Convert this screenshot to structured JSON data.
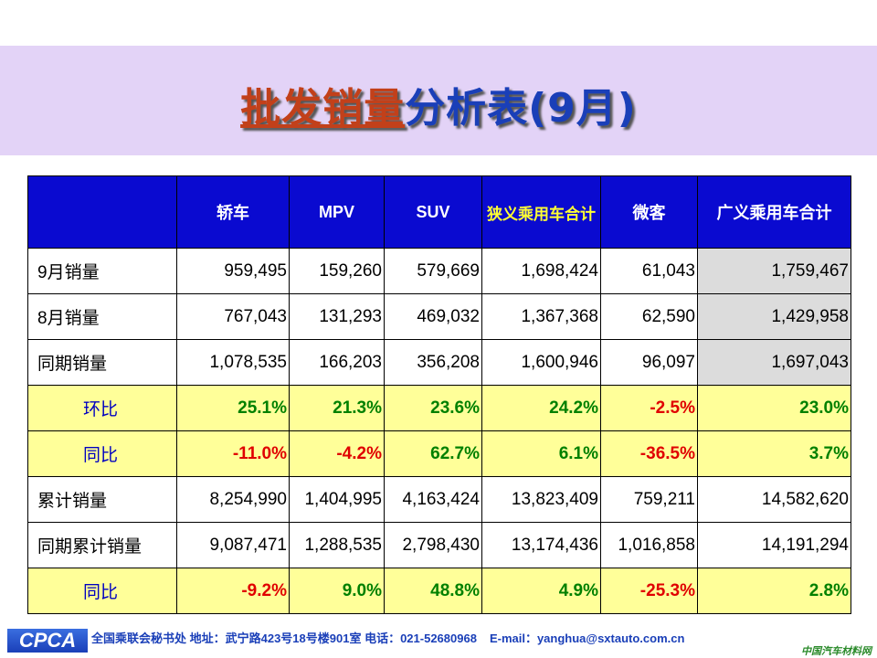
{
  "title": {
    "part1": "批发销量",
    "part2": "分析表(9月)"
  },
  "table": {
    "headers": [
      "",
      "轿车",
      "MPV",
      "SUV",
      "狭义乘用车合计",
      "微客",
      "广义乘用车合计"
    ],
    "rows": [
      {
        "label": "9月销量",
        "type": "num",
        "values": [
          "959,495",
          "159,260",
          "579,669",
          "1,698,424",
          "61,043",
          "1,759,467"
        ]
      },
      {
        "label": "8月销量",
        "type": "num",
        "values": [
          "767,043",
          "131,293",
          "469,032",
          "1,367,368",
          "62,590",
          "1,429,958"
        ]
      },
      {
        "label": "同期销量",
        "type": "num",
        "values": [
          "1,078,535",
          "166,203",
          "356,208",
          "1,600,946",
          "96,097",
          "1,697,043"
        ]
      },
      {
        "label": "环比",
        "type": "pct",
        "values": [
          "25.1%",
          "21.3%",
          "23.6%",
          "24.2%",
          "-2.5%",
          "23.0%"
        ]
      },
      {
        "label": "同比",
        "type": "pct",
        "values": [
          "-11.0%",
          "-4.2%",
          "62.7%",
          "6.1%",
          "-36.5%",
          "3.7%"
        ]
      },
      {
        "label": "累计销量",
        "type": "num",
        "values": [
          "8,254,990",
          "1,404,995",
          "4,163,424",
          "13,823,409",
          "759,211",
          "14,582,620"
        ]
      },
      {
        "label": "同期累计销量",
        "type": "num",
        "values": [
          "9,087,471",
          "1,288,535",
          "2,798,430",
          "13,174,436",
          "1,016,858",
          "14,191,294"
        ]
      },
      {
        "label": "同比",
        "type": "pct",
        "values": [
          "-9.2%",
          "9.0%",
          "48.8%",
          "4.9%",
          "-25.3%",
          "2.8%"
        ]
      }
    ]
  },
  "footer": {
    "logo": "CPCA",
    "address": "全国乘联会秘书处  地址：武宁路423号18号楼901室   电话：021-52680968",
    "email": "E-mail：yanghua@sxtauto.com.cn",
    "watermark": "中国汽车材料网"
  },
  "colors": {
    "header": "#0a0ad0",
    "band": "#e3d3f7",
    "yellow": "#ffff99",
    "positive": "#008000",
    "negative": "#e00000"
  }
}
